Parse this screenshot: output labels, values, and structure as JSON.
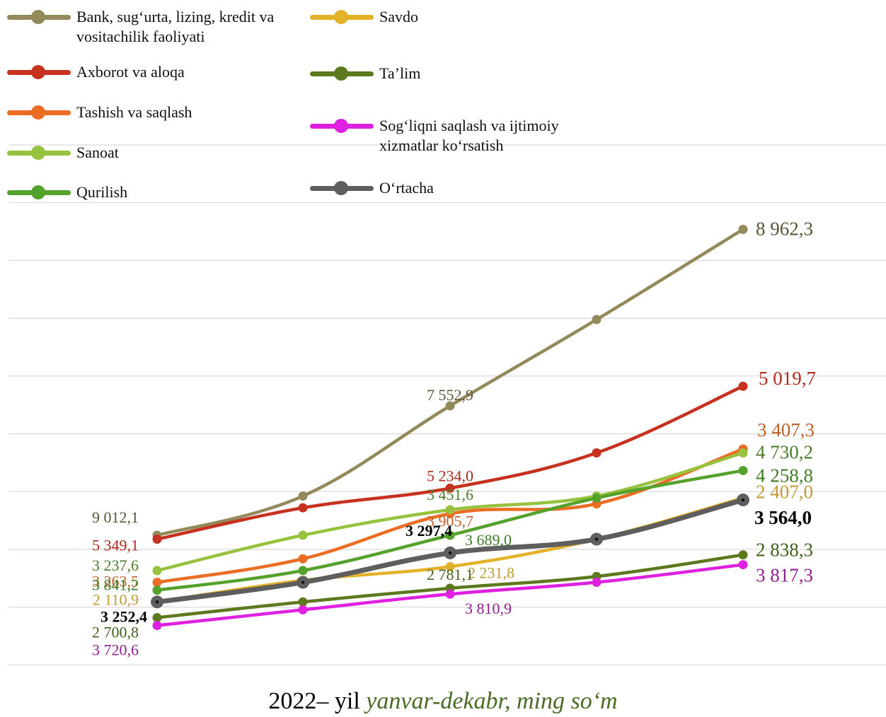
{
  "chart_data": {
    "type": "line",
    "footer": {
      "year_text": "2022– yil",
      "period_text": "yanvar-dekabr, ming so‘m"
    },
    "x": [
      0,
      1,
      2,
      3,
      4
    ],
    "series": [
      {
        "name": "Bank, sug‘urta, lizing, kredit va vositachilik faoliyati",
        "color": "#938a5c",
        "values": [
          3.3,
          4.3,
          6.6,
          8.8,
          11.1
        ],
        "labels": [
          "9 012,1",
          "",
          "7 552,9",
          "",
          "8 962,3"
        ],
        "label_color": "#5c5436"
      },
      {
        "name": "Axborot va aloqa",
        "color": "#c7311f",
        "values": [
          3.2,
          4.0,
          4.5,
          5.4,
          7.1
        ],
        "labels": [
          "5 349,1",
          "",
          "5 234,0",
          "",
          "5 019,7"
        ],
        "label_color": "#b0291b"
      },
      {
        "name": "Tashish va saqlash",
        "color": "#ea6d23",
        "values": [
          2.1,
          2.7,
          3.85,
          4.1,
          5.5
        ],
        "labels": [
          "3 263,5",
          "",
          "3 905,7",
          "",
          "3 407,3"
        ],
        "label_color": "#c0602a"
      },
      {
        "name": "Sanoat",
        "color": "#97c23d",
        "values": [
          2.4,
          3.3,
          3.95,
          4.3,
          5.4
        ],
        "labels": [
          "3 237,6",
          "",
          "3 451,6",
          "",
          "4 730,2"
        ],
        "label_color": "#4a7d29"
      },
      {
        "name": "Qurilish",
        "color": "#54a12c",
        "values": [
          1.9,
          2.4,
          3.3,
          4.25,
          4.95
        ],
        "labels": [
          "3 841,2",
          "",
          "3 689,0",
          "",
          "4 258,8"
        ],
        "label_color": "#3f7d24"
      },
      {
        "name": "Savdo",
        "color": "#e3b228",
        "values": [
          1.6,
          2.15,
          2.5,
          3.2,
          4.25
        ],
        "labels": [
          "2 110,9",
          "",
          "2 231,8",
          "",
          "2 407,0"
        ],
        "label_color": "#c19b33"
      },
      {
        "name": "Ta’lim",
        "color": "#5c791d",
        "values": [
          1.2,
          1.6,
          1.95,
          2.25,
          2.8
        ],
        "labels": [
          "2 700,8",
          "",
          "2 781,1",
          "",
          "2 838,3"
        ],
        "label_color": "#41621a"
      },
      {
        "name": "Sog‘liqni saqlash va ijtimoiy xizmatlar ko‘rsatish",
        "color": "#e020e0",
        "values": [
          1.0,
          1.4,
          1.8,
          2.1,
          2.55
        ],
        "labels": [
          "3 720,6",
          "",
          "3 810,9",
          "",
          "3 817,3"
        ],
        "label_color": "#8e1f8e"
      },
      {
        "name": "O‘rtacha",
        "color": "#5e5e5e",
        "values": [
          1.6,
          2.1,
          2.85,
          3.2,
          4.2
        ],
        "labels": [
          "3 252,4",
          "",
          "3 297,4",
          "",
          "3 564,0"
        ],
        "label_color": "#000000",
        "bold": true
      }
    ]
  }
}
